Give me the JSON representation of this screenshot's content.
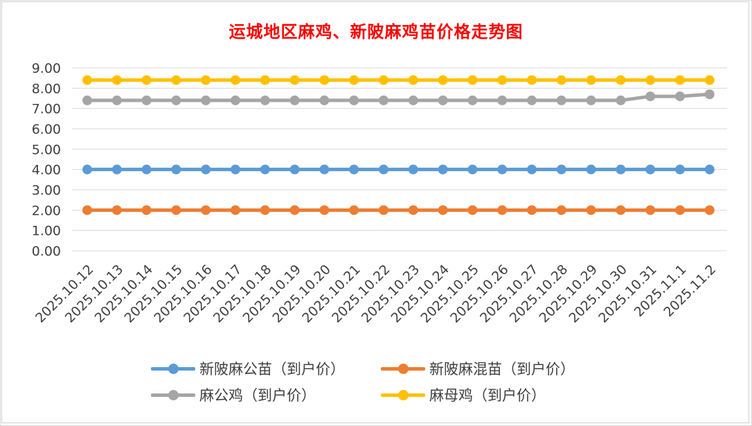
{
  "chart_data": {
    "type": "line",
    "title": "运城地区麻鸡、新陂麻鸡苗价格走势图",
    "x": [
      "2025.10.12",
      "2025.10.13",
      "2025.10.14",
      "2025.10.15",
      "2025.10.16",
      "2025.10.17",
      "2025.10.18",
      "2025.10.19",
      "2025.10.20",
      "2025.10.21",
      "2025.10.22",
      "2025.10.23",
      "2025.10.24",
      "2025.10.25",
      "2025.10.26",
      "2025.10.27",
      "2025.10.28",
      "2025.10.29",
      "2025.10.30",
      "2025.10.31",
      "2025.11.1",
      "2025.11.2"
    ],
    "yticks": [
      "0.00",
      "1.00",
      "2.00",
      "3.00",
      "4.00",
      "5.00",
      "6.00",
      "7.00",
      "8.00",
      "9.00"
    ],
    "ylim": [
      0,
      9
    ],
    "grid": true,
    "legend_position": "bottom",
    "series": [
      {
        "name": "新陂麻公苗（到户价）",
        "color": "#5b9bd5",
        "values": [
          4,
          4,
          4,
          4,
          4,
          4,
          4,
          4,
          4,
          4,
          4,
          4,
          4,
          4,
          4,
          4,
          4,
          4,
          4,
          4,
          4,
          4
        ]
      },
      {
        "name": "新陂麻混苗（到户价）",
        "color": "#ed7d31",
        "values": [
          2,
          2,
          2,
          2,
          2,
          2,
          2,
          2,
          2,
          2,
          2,
          2,
          2,
          2,
          2,
          2,
          2,
          2,
          2,
          2,
          2,
          2
        ]
      },
      {
        "name": "麻公鸡（到户价）",
        "color": "#a5a5a5",
        "values": [
          7.4,
          7.4,
          7.4,
          7.4,
          7.4,
          7.4,
          7.4,
          7.4,
          7.4,
          7.4,
          7.4,
          7.4,
          7.4,
          7.4,
          7.4,
          7.4,
          7.4,
          7.4,
          7.4,
          7.6,
          7.6,
          7.7
        ]
      },
      {
        "name": "麻母鸡（到户价）",
        "color": "#ffc000",
        "values": [
          8.4,
          8.4,
          8.4,
          8.4,
          8.4,
          8.4,
          8.4,
          8.4,
          8.4,
          8.4,
          8.4,
          8.4,
          8.4,
          8.4,
          8.4,
          8.4,
          8.4,
          8.4,
          8.4,
          8.4,
          8.4,
          8.4
        ]
      }
    ]
  }
}
